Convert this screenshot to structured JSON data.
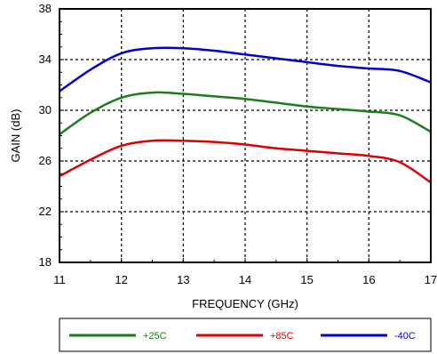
{
  "chart_data": {
    "type": "line",
    "title": "",
    "xlabel": "FREQUENCY (GHz)",
    "ylabel": "GAIN (dB)",
    "xlim": [
      11,
      17
    ],
    "ylim": [
      18,
      38
    ],
    "x_ticks": [
      11,
      12,
      13,
      14,
      15,
      16,
      17
    ],
    "y_ticks": [
      18,
      22,
      26,
      30,
      34,
      38
    ],
    "x_tick_labels": [
      "11",
      "12",
      "13",
      "14",
      "15",
      "16",
      "17"
    ],
    "y_tick_labels": [
      "18",
      "22",
      "26",
      "30",
      "34",
      "38"
    ],
    "grid": true,
    "legend_position": "bottom",
    "x": [
      11,
      11.5,
      12,
      12.5,
      13,
      13.5,
      14,
      14.5,
      15,
      15.5,
      16,
      16.5,
      17
    ],
    "series": [
      {
        "name": "+25C",
        "color": "#1a7f1a",
        "values": [
          28.1,
          29.8,
          31.0,
          31.4,
          31.3,
          31.1,
          30.9,
          30.6,
          30.3,
          30.1,
          29.9,
          29.6,
          28.3
        ]
      },
      {
        "name": "+85C",
        "color": "#dd0000",
        "values": [
          24.8,
          26.1,
          27.2,
          27.6,
          27.6,
          27.5,
          27.3,
          27.0,
          26.8,
          26.6,
          26.4,
          25.9,
          24.3
        ]
      },
      {
        "name": "-40C",
        "color": "#0000cc",
        "values": [
          31.5,
          33.2,
          34.5,
          34.9,
          34.9,
          34.7,
          34.4,
          34.1,
          33.8,
          33.5,
          33.3,
          33.1,
          32.2
        ]
      }
    ]
  }
}
